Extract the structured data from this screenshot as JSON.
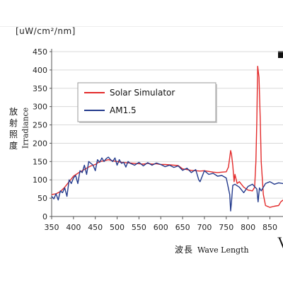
{
  "unit_label": "[uW/cm²/nm]",
  "y_title_cjk": [
    "放",
    "射",
    "照",
    "度"
  ],
  "y_title_en": "Irradiance",
  "x_title_cjk": "波長",
  "x_title_en": "Wave Length",
  "corner_glyph": "V",
  "chart_data": {
    "type": "line",
    "x_ticks": [
      350,
      400,
      450,
      500,
      550,
      600,
      650,
      700,
      750,
      800,
      850
    ],
    "y_ticks": [
      0,
      50,
      100,
      150,
      200,
      250,
      300,
      350,
      400,
      450
    ],
    "xlim": [
      350,
      880
    ],
    "ylim": [
      0,
      450
    ],
    "grid": "horizontal",
    "legend_position": "upper-left",
    "series": [
      {
        "name": "Solar Simulator",
        "color": "#e32a2a",
        "x": [
          350,
          360,
          370,
          380,
          390,
          400,
          410,
          420,
          430,
          440,
          450,
          460,
          470,
          480,
          490,
          500,
          510,
          520,
          530,
          540,
          550,
          560,
          570,
          580,
          590,
          600,
          610,
          620,
          630,
          640,
          650,
          660,
          670,
          680,
          690,
          700,
          710,
          720,
          730,
          740,
          750,
          755,
          760,
          762,
          765,
          768,
          770,
          775,
          780,
          790,
          800,
          810,
          815,
          818,
          820,
          822,
          825,
          828,
          830,
          835,
          840,
          850,
          860,
          870,
          875,
          880
        ],
        "y": [
          60,
          62,
          68,
          80,
          95,
          110,
          118,
          125,
          132,
          138,
          142,
          150,
          152,
          155,
          152,
          150,
          148,
          147,
          146,
          145,
          144,
          143,
          145,
          143,
          144,
          142,
          142,
          141,
          140,
          139,
          130,
          128,
          126,
          125,
          124,
          125,
          123,
          121,
          120,
          121,
          122,
          135,
          180,
          170,
          140,
          95,
          115,
          90,
          95,
          80,
          72,
          70,
          80,
          150,
          260,
          410,
          380,
          260,
          150,
          60,
          30,
          25,
          28,
          30,
          40,
          45
        ]
      },
      {
        "name": "AM1.5",
        "color": "#233a8c",
        "x": [
          350,
          355,
          360,
          365,
          370,
          375,
          380,
          385,
          390,
          395,
          400,
          405,
          410,
          415,
          420,
          425,
          430,
          435,
          440,
          445,
          450,
          455,
          460,
          465,
          470,
          475,
          480,
          485,
          490,
          495,
          500,
          505,
          510,
          515,
          520,
          525,
          530,
          540,
          550,
          560,
          570,
          580,
          590,
          600,
          610,
          620,
          630,
          640,
          650,
          660,
          670,
          680,
          687,
          690,
          700,
          710,
          720,
          730,
          740,
          750,
          758,
          760,
          762,
          765,
          770,
          780,
          790,
          800,
          810,
          820,
          823,
          826,
          830,
          840,
          850,
          860,
          870,
          880
        ],
        "y": [
          55,
          48,
          62,
          45,
          70,
          65,
          78,
          55,
          100,
          90,
          105,
          112,
          90,
          125,
          120,
          140,
          115,
          150,
          145,
          140,
          125,
          155,
          148,
          160,
          150,
          158,
          162,
          155,
          150,
          160,
          140,
          155,
          145,
          148,
          135,
          150,
          145,
          140,
          148,
          138,
          147,
          140,
          146,
          142,
          136,
          140,
          134,
          138,
          126,
          132,
          120,
          128,
          100,
          95,
          125,
          115,
          118,
          110,
          112,
          105,
          60,
          15,
          40,
          85,
          88,
          80,
          65,
          82,
          88,
          75,
          40,
          78,
          70,
          90,
          95,
          88,
          92,
          90
        ]
      }
    ]
  }
}
